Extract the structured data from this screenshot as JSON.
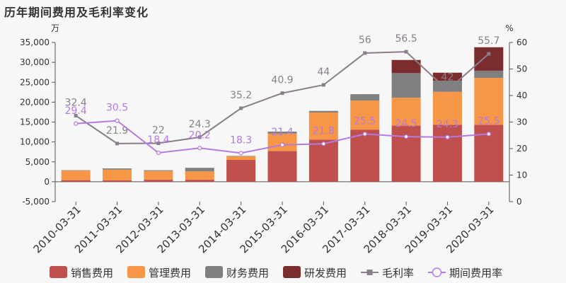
{
  "chart_data": {
    "type": "bar",
    "title": "历年期间费用及毛利率变化",
    "left_axis_unit": "万",
    "right_axis_unit": "%",
    "categories": [
      "2010-03-31",
      "2011-03-31",
      "2012-03-31",
      "2013-03-31",
      "2014-03-31",
      "2015-03-31",
      "2016-03-31",
      "2017-03-31",
      "2018-03-31",
      "2019-03-31",
      "2020-03-31"
    ],
    "y_left": {
      "min": -5000,
      "max": 35000,
      "ticks": [
        -5000,
        0,
        5000,
        10000,
        15000,
        20000,
        25000,
        30000,
        35000
      ],
      "tick_labels": [
        "-5,000",
        "0",
        "5,000",
        "10,000",
        "15,000",
        "20,000",
        "25,000",
        "30,000",
        "35,000"
      ]
    },
    "y_right": {
      "min": 0,
      "max": 60,
      "ticks": [
        0,
        10,
        20,
        30,
        40,
        50,
        60
      ],
      "tick_labels": [
        "0",
        "10",
        "20",
        "30",
        "40",
        "50",
        "60"
      ]
    },
    "stacked": true,
    "series": [
      {
        "name": "销售费用",
        "color": "#c0504d",
        "values": [
          400,
          350,
          500,
          500,
          5500,
          7700,
          10600,
          13100,
          14100,
          14300,
          14300
        ]
      },
      {
        "name": "管理费用",
        "color": "#f79646",
        "values": [
          2400,
          2700,
          2200,
          2100,
          900,
          4400,
          6800,
          7300,
          7000,
          8300,
          11800
        ]
      },
      {
        "name": "财务费用",
        "color": "#7f7f7f",
        "values": [
          100,
          300,
          200,
          900,
          100,
          500,
          400,
          1600,
          6200,
          2800,
          1800
        ]
      },
      {
        "name": "研发费用",
        "color": "#7b2c2c",
        "values": [
          0,
          0,
          0,
          0,
          0,
          0,
          0,
          0,
          3300,
          2000,
          5900
        ]
      }
    ],
    "line_series": [
      {
        "name": "毛利率",
        "color": "#8a7f8a",
        "axis": "right",
        "values": [
          32.4,
          21.9,
          22,
          24.3,
          35.2,
          40.9,
          44,
          56,
          56.5,
          42,
          55.7
        ],
        "labels": [
          "32.4",
          "21.9",
          "22",
          "24.3",
          "35.2",
          "40.9",
          "44",
          "56",
          "56.5",
          "42",
          "55.7"
        ]
      },
      {
        "name": "期间费用率",
        "color": "#b57ae0",
        "axis": "right",
        "values": [
          29.4,
          30.5,
          18.4,
          20.2,
          18.3,
          21.4,
          21.8,
          25.5,
          24.5,
          24.3,
          25.5
        ],
        "labels": [
          "29.4",
          "30.5",
          "18.4",
          "20.2",
          "18.3",
          "21.4",
          "21.8",
          "25.5",
          "24.5",
          "24.3",
          "25.5"
        ]
      }
    ],
    "legend_position": "bottom",
    "grid": false
  }
}
